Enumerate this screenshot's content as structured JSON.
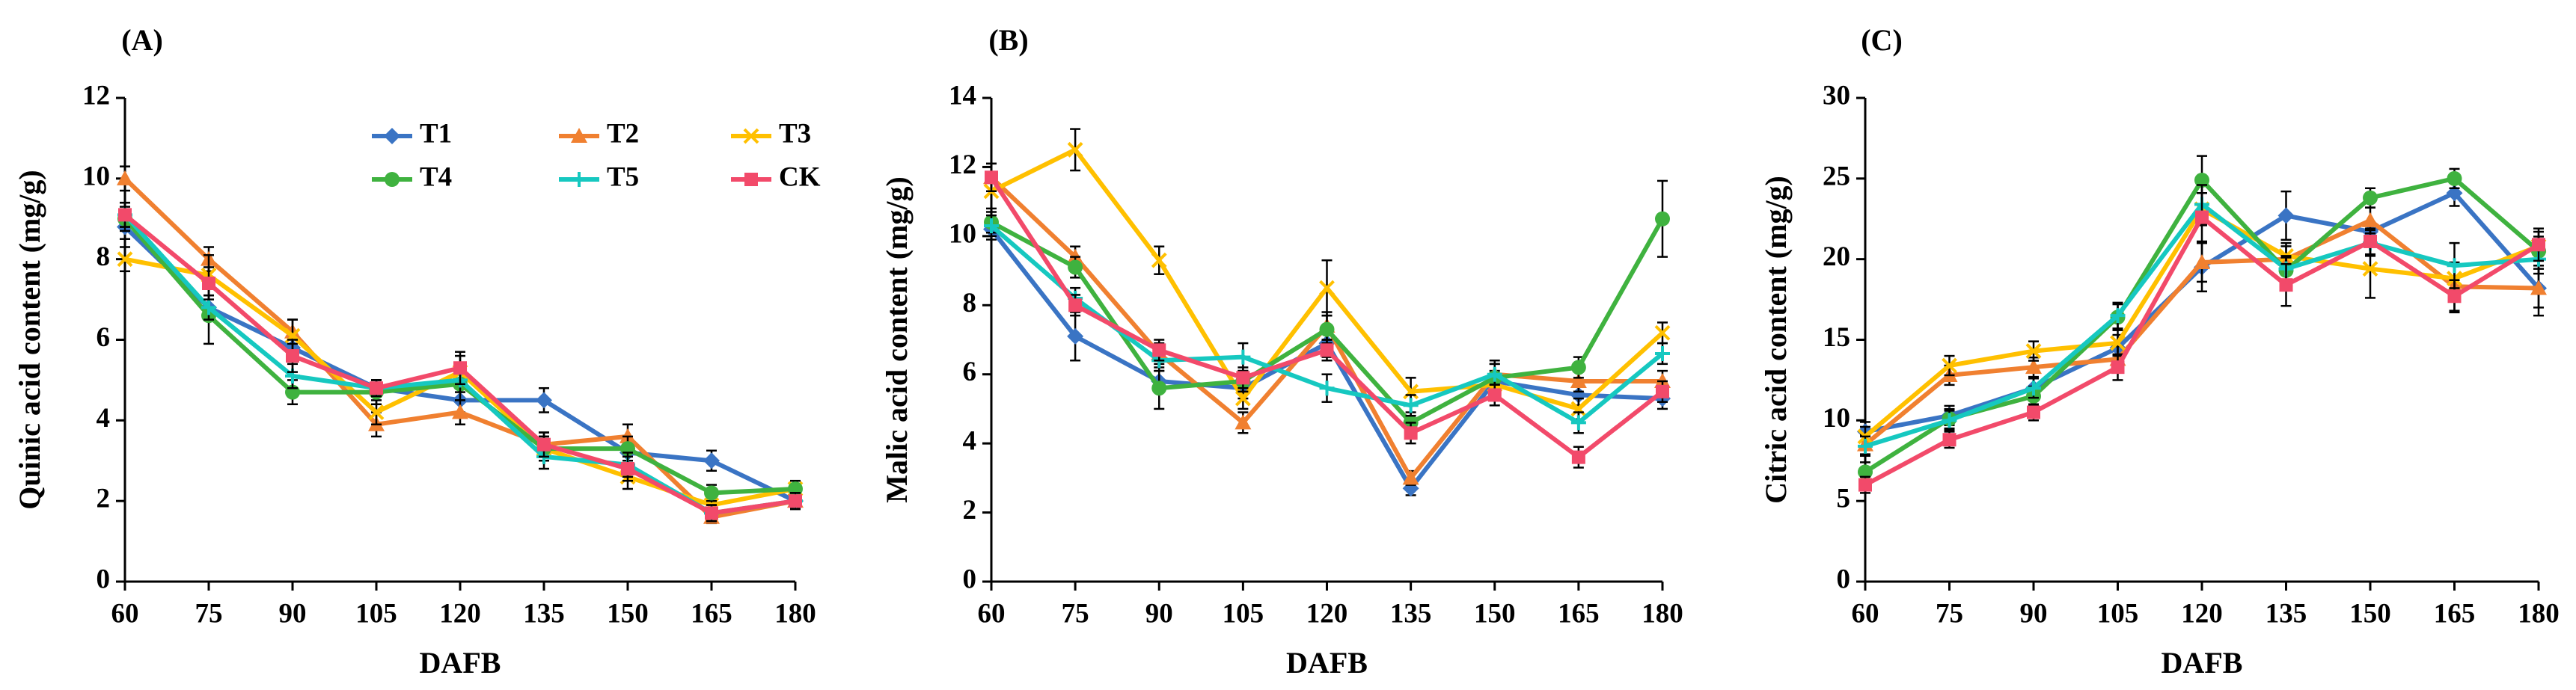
{
  "legend": {
    "labels": [
      "T1",
      "T2",
      "T3",
      "T4",
      "T5",
      "CK"
    ]
  },
  "series_colors": {
    "T1": "#3A74C4",
    "T2": "#F08030",
    "T3": "#FFC000",
    "T4": "#3FB23F",
    "T5": "#16C8C0",
    "CK": "#F24A6A"
  },
  "chart_data": [
    {
      "type": "line",
      "panel": "(A)",
      "x": [
        60,
        75,
        90,
        105,
        120,
        135,
        150,
        165,
        180
      ],
      "xlabel": "DAFB",
      "ylabel": "Quinic acid content (mg/g)",
      "ylim": [
        0,
        12
      ],
      "yticks": [
        0,
        2,
        4,
        6,
        8,
        10,
        12
      ],
      "series": [
        {
          "name": "T1",
          "values": [
            8.8,
            6.8,
            5.8,
            4.8,
            4.5,
            4.5,
            3.2,
            3.0,
            2.0
          ],
          "errors": [
            0.3,
            0.3,
            0.3,
            0.2,
            0.3,
            0.3,
            0.2,
            0.25,
            0.15
          ]
        },
        {
          "name": "T2",
          "values": [
            10.0,
            8.0,
            6.2,
            3.9,
            4.2,
            3.4,
            3.6,
            1.6,
            2.0
          ],
          "errors": [
            0.3,
            0.3,
            0.3,
            0.3,
            0.3,
            0.3,
            0.3,
            0.15,
            0.2
          ]
        },
        {
          "name": "T3",
          "values": [
            8.0,
            7.6,
            6.1,
            4.2,
            5.2,
            3.3,
            2.6,
            1.9,
            2.3
          ],
          "errors": [
            0.3,
            0.5,
            0.4,
            0.3,
            0.4,
            0.3,
            0.3,
            0.2,
            0.2
          ]
        },
        {
          "name": "T4",
          "values": [
            9.0,
            6.6,
            4.7,
            4.7,
            4.9,
            3.3,
            3.3,
            2.2,
            2.3
          ],
          "errors": [
            0.3,
            0.7,
            0.3,
            0.3,
            0.4,
            0.3,
            0.3,
            0.2,
            0.2
          ]
        },
        {
          "name": "T5",
          "values": [
            9.1,
            6.8,
            5.1,
            4.8,
            5.0,
            3.1,
            2.9,
            1.7,
            2.0
          ],
          "errors": [
            0.3,
            0.3,
            0.3,
            0.2,
            0.3,
            0.3,
            0.3,
            0.2,
            0.2
          ]
        },
        {
          "name": "CK",
          "values": [
            9.1,
            7.4,
            5.6,
            4.8,
            5.3,
            3.4,
            2.8,
            1.7,
            2.0
          ],
          "errors": [
            0.3,
            0.4,
            0.4,
            0.2,
            0.4,
            0.3,
            0.3,
            0.2,
            0.2
          ]
        }
      ]
    },
    {
      "type": "line",
      "panel": "(B)",
      "x": [
        60,
        75,
        90,
        105,
        120,
        135,
        150,
        165,
        180
      ],
      "xlabel": "DAFB",
      "ylabel": "Malic acid content (mg/g)",
      "ylim": [
        0,
        14
      ],
      "yticks": [
        0,
        2,
        4,
        6,
        8,
        10,
        12,
        14
      ],
      "series": [
        {
          "name": "T1",
          "values": [
            10.2,
            7.1,
            5.8,
            5.6,
            6.9,
            2.7,
            5.8,
            5.4,
            5.3
          ],
          "errors": [
            0.3,
            0.7,
            0.3,
            0.3,
            0.4,
            0.2,
            0.3,
            0.3,
            0.3
          ]
        },
        {
          "name": "T2",
          "values": [
            11.7,
            9.4,
            6.6,
            4.6,
            7.4,
            3.0,
            6.0,
            5.8,
            5.8
          ],
          "errors": [
            0.4,
            0.3,
            0.3,
            0.3,
            0.4,
            0.2,
            0.3,
            0.3,
            0.3
          ]
        },
        {
          "name": "T3",
          "values": [
            11.3,
            12.5,
            9.3,
            5.3,
            8.5,
            5.5,
            5.7,
            5.0,
            7.2
          ],
          "errors": [
            0.5,
            0.6,
            0.4,
            0.3,
            0.8,
            0.4,
            0.3,
            0.3,
            0.3
          ]
        },
        {
          "name": "T4",
          "values": [
            10.4,
            9.1,
            5.6,
            5.8,
            7.3,
            4.6,
            5.9,
            6.2,
            10.5
          ],
          "errors": [
            0.3,
            0.3,
            0.6,
            0.3,
            0.4,
            0.3,
            0.5,
            0.3,
            1.1
          ]
        },
        {
          "name": "T5",
          "values": [
            10.3,
            8.2,
            6.4,
            6.5,
            5.6,
            5.1,
            6.0,
            4.6,
            6.6
          ],
          "errors": [
            0.3,
            0.3,
            0.3,
            0.4,
            0.4,
            0.3,
            0.3,
            0.3,
            0.3
          ]
        },
        {
          "name": "CK",
          "values": [
            11.7,
            8.0,
            6.7,
            5.9,
            6.7,
            4.3,
            5.4,
            3.6,
            5.5
          ],
          "errors": [
            0.4,
            0.3,
            0.3,
            0.3,
            0.3,
            0.3,
            0.3,
            0.3,
            0.3
          ]
        }
      ]
    },
    {
      "type": "line",
      "panel": "(C)",
      "x": [
        60,
        75,
        90,
        105,
        120,
        135,
        150,
        165,
        180
      ],
      "xlabel": "DAFB",
      "ylabel": "Citric acid content (mg/g)",
      "ylim": [
        0,
        30
      ],
      "yticks": [
        0,
        5,
        10,
        15,
        20,
        25,
        30
      ],
      "series": [
        {
          "name": "T1",
          "values": [
            9.3,
            10.3,
            12.0,
            14.5,
            19.5,
            22.7,
            21.7,
            24.1,
            18.2
          ],
          "errors": [
            0.6,
            0.6,
            0.6,
            0.8,
            1.5,
            1.5,
            0.6,
            0.8,
            1.7
          ]
        },
        {
          "name": "T2",
          "values": [
            8.5,
            12.8,
            13.3,
            13.8,
            19.8,
            20.0,
            22.4,
            18.3,
            18.2
          ],
          "errors": [
            0.6,
            0.6,
            0.6,
            0.8,
            1.2,
            0.8,
            0.8,
            1.5,
            1.2
          ]
        },
        {
          "name": "T3",
          "values": [
            9.0,
            13.4,
            14.3,
            14.8,
            23.1,
            20.2,
            19.4,
            18.8,
            20.8
          ],
          "errors": [
            0.6,
            0.6,
            0.6,
            0.8,
            1.0,
            0.8,
            1.8,
            0.9,
            0.9
          ]
        },
        {
          "name": "T4",
          "values": [
            6.8,
            10.1,
            11.5,
            16.4,
            24.9,
            19.3,
            23.8,
            25.0,
            20.5
          ],
          "errors": [
            0.6,
            0.6,
            0.6,
            0.8,
            1.5,
            0.8,
            0.6,
            0.6,
            0.9
          ]
        },
        {
          "name": "T5",
          "values": [
            8.4,
            10.0,
            12.0,
            16.5,
            23.4,
            19.4,
            21.0,
            19.6,
            20.0
          ],
          "errors": [
            0.6,
            0.6,
            0.6,
            0.8,
            1.2,
            0.8,
            0.8,
            1.4,
            0.9
          ]
        },
        {
          "name": "CK",
          "values": [
            6.0,
            8.8,
            10.5,
            13.3,
            22.6,
            18.4,
            21.1,
            17.7,
            20.9
          ],
          "errors": [
            0.5,
            0.5,
            0.5,
            0.8,
            1.5,
            1.3,
            0.8,
            1.0,
            1.0
          ]
        }
      ]
    }
  ]
}
